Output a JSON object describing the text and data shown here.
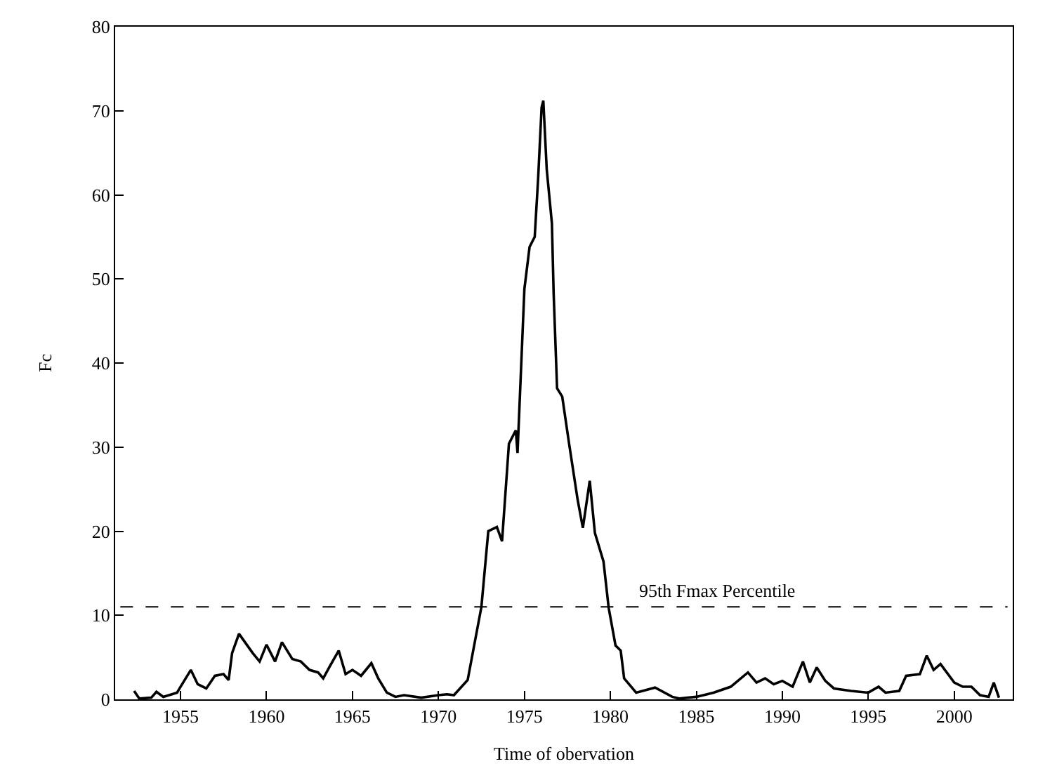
{
  "chart_data": {
    "type": "line",
    "xlabel": "Time of obervation",
    "ylabel": "Fc",
    "xlim": [
      1951.2,
      2003.4
    ],
    "xticks": [
      1955,
      1960,
      1965,
      1970,
      1975,
      1980,
      1985,
      1990,
      1995,
      2000
    ],
    "ylim": [
      0,
      80
    ],
    "yticks": [
      0,
      10,
      20,
      30,
      40,
      50,
      60,
      70,
      80
    ],
    "marker": "none",
    "line_style": "solid",
    "series": [
      {
        "color": "#000000",
        "x": [
          1952.3,
          1952.6,
          1953.3,
          1953.6,
          1954.0,
          1954.8,
          1955.0,
          1955.6,
          1956.0,
          1956.5,
          1957.0,
          1957.5,
          1957.8,
          1958.0,
          1958.4,
          1959.2,
          1959.6,
          1960.0,
          1960.5,
          1960.9,
          1961.5,
          1962.0,
          1962.5,
          1963.0,
          1963.3,
          1963.7,
          1964.2,
          1964.6,
          1965.0,
          1965.5,
          1966.1,
          1966.5,
          1967.0,
          1967.5,
          1968.0,
          1969.0,
          1970.0,
          1970.5,
          1970.9,
          1971.7,
          1972.5,
          1972.9,
          1973.4,
          1973.7,
          1974.1,
          1974.5,
          1974.6,
          1975.0,
          1975.3,
          1975.6,
          1975.8,
          1976.0,
          1976.1,
          1976.3,
          1976.6,
          1976.7,
          1976.9,
          1977.2,
          1977.6,
          1978.1,
          1978.4,
          1978.8,
          1979.1,
          1979.6,
          1979.9,
          1980.3,
          1980.6,
          1980.8,
          1981.5,
          1982.6,
          1983.6,
          1984.0,
          1985.0,
          1986.0,
          1987.0,
          1988.0,
          1988.5,
          1989.0,
          1989.5,
          1990.0,
          1990.6,
          1991.2,
          1991.6,
          1992.0,
          1992.5,
          1993.0,
          1994.0,
          1995.0,
          1995.6,
          1996.0,
          1996.8,
          1997.2,
          1998.0,
          1998.4,
          1998.8,
          1999.2,
          2000.0,
          2000.5,
          2001.0,
          2001.5,
          2002.0,
          2002.3,
          2002.6
        ],
        "values": [
          1.0,
          0.1,
          0.2,
          0.9,
          0.3,
          0.8,
          1.5,
          3.5,
          1.8,
          1.3,
          2.8,
          3.0,
          2.3,
          5.5,
          7.8,
          5.5,
          4.5,
          6.5,
          4.5,
          6.8,
          4.8,
          4.5,
          3.5,
          3.2,
          2.5,
          4.0,
          5.8,
          3.0,
          3.5,
          2.8,
          4.3,
          2.5,
          0.8,
          0.3,
          0.5,
          0.2,
          0.5,
          0.6,
          0.5,
          2.3,
          11,
          20,
          20.5,
          18.8,
          30.4,
          32,
          29.3,
          48.8,
          53.8,
          55,
          62,
          70.4,
          71.2,
          63,
          56.6,
          48.3,
          37,
          36,
          30.4,
          23.7,
          20.4,
          26,
          19.8,
          16.4,
          10.9,
          6.4,
          5.8,
          2.5,
          0.8,
          1.4,
          0.3,
          0.1,
          0.3,
          0.8,
          1.5,
          3.2,
          2.0,
          2.5,
          1.8,
          2.2,
          1.5,
          4.5,
          2.0,
          3.8,
          2.2,
          1.3,
          1.0,
          0.8,
          1.5,
          0.8,
          1.0,
          2.8,
          3.0,
          5.2,
          3.5,
          4.2,
          2.0,
          1.5,
          1.5,
          0.5,
          0.3,
          2.0,
          0.2
        ]
      }
    ],
    "ref_lines": [
      {
        "axis": "y",
        "value": 11,
        "label": "95th Fmax Percentile",
        "line_style": "dashed",
        "color": "#000000"
      }
    ]
  }
}
